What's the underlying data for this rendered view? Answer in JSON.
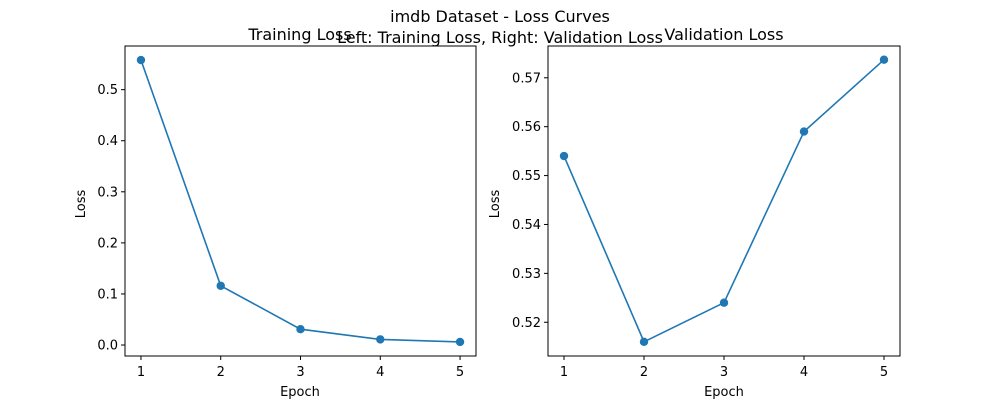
{
  "figure": {
    "title_line1": "imdb Dataset - Loss Curves",
    "title_line2": "Left: Training Loss, Right: Validation Loss"
  },
  "chart_data": [
    {
      "type": "line",
      "title": "Training Loss",
      "xlabel": "Epoch",
      "ylabel": "Loss",
      "x": [
        1,
        2,
        3,
        4,
        5
      ],
      "xticks": [
        "1",
        "2",
        "3",
        "4",
        "5"
      ],
      "yticks": [
        "0.0",
        "0.1",
        "0.2",
        "0.3",
        "0.4",
        "0.5"
      ],
      "xlim": [
        0.8,
        5.2
      ],
      "ylim": [
        -0.0215,
        0.5855
      ],
      "grid": false,
      "series": [
        {
          "values": [
            0.558,
            0.116,
            0.031,
            0.011,
            0.006
          ],
          "color": "#1f77b4",
          "marker": "circle"
        }
      ]
    },
    {
      "type": "line",
      "title": "Validation Loss",
      "xlabel": "Epoch",
      "ylabel": "Loss",
      "x": [
        1,
        2,
        3,
        4,
        5
      ],
      "xticks": [
        "1",
        "2",
        "3",
        "4",
        "5"
      ],
      "yticks": [
        "0.52",
        "0.53",
        "0.54",
        "0.55",
        "0.56",
        "0.57"
      ],
      "xlim": [
        0.8,
        5.2
      ],
      "ylim": [
        0.5131,
        0.5765
      ],
      "grid": false,
      "series": [
        {
          "values": [
            0.554,
            0.516,
            0.524,
            0.559,
            0.5737
          ],
          "color": "#1f77b4",
          "marker": "circle"
        }
      ]
    }
  ]
}
